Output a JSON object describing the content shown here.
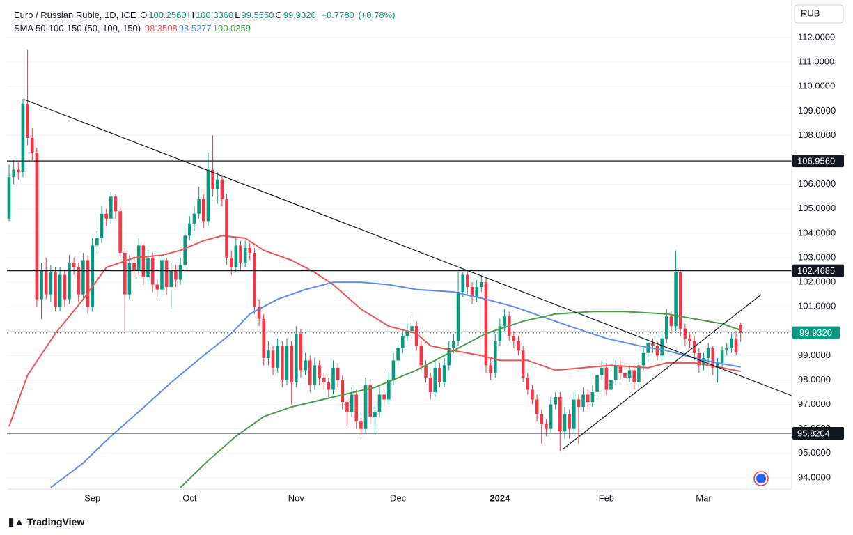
{
  "chart_data": {
    "type": "candlestick",
    "header": {
      "symbol": "Euro / Russian Ruble, 1D, ICE",
      "fields": [
        {
          "key": "O",
          "value": 100.256,
          "label": "100.2560"
        },
        {
          "key": "H",
          "value": 100.336,
          "label": "100.3360"
        },
        {
          "key": "L",
          "value": 99.555,
          "label": "99.5550"
        },
        {
          "key": "C",
          "value": 99.932,
          "label": "99.9320"
        }
      ],
      "change": {
        "value": 0.778,
        "label": "+0.7780"
      },
      "change_percent": {
        "value": 0.78,
        "label": "(+0.78%)"
      },
      "indicator": "SMA 50-100-150 (50, 100, 150)"
    },
    "currency": "RUB",
    "brand": "TradingView",
    "up_color": "#089981",
    "down_color": "#f23645",
    "grid": true,
    "ylim": [
      93.54,
      113.54
    ],
    "yticks": [
      {
        "value": 94,
        "label": "94.0000"
      },
      {
        "value": 95,
        "label": "95.0000"
      },
      {
        "value": 96,
        "label": "96.0000"
      },
      {
        "value": 97,
        "label": "97.0000"
      },
      {
        "value": 98,
        "label": "98.0000"
      },
      {
        "value": 99,
        "label": "99.0000"
      },
      {
        "value": 100,
        "label": "100.0000"
      },
      {
        "value": 101,
        "label": "101.0000"
      },
      {
        "value": 102,
        "label": "102.0000"
      },
      {
        "value": 103,
        "label": "103.0000"
      },
      {
        "value": 104,
        "label": "104.0000"
      },
      {
        "value": 105,
        "label": "105.0000"
      },
      {
        "value": 106,
        "label": "106.0000"
      },
      {
        "value": 107,
        "label": "107.0000"
      },
      {
        "value": 108,
        "label": "108.0000"
      },
      {
        "value": 109,
        "label": "109.0000"
      },
      {
        "value": 110,
        "label": "110.0000"
      },
      {
        "value": 111,
        "label": "111.0000"
      },
      {
        "value": 112,
        "label": "112.0000"
      }
    ],
    "levels": [
      {
        "value": 106.956,
        "label": "106.9560"
      },
      {
        "value": 102.4685,
        "label": "102.4685"
      },
      {
        "value": 95.8204,
        "label": "95.8204"
      }
    ],
    "last_price": {
      "value": 99.932,
      "label": "99.9320",
      "color": "#089981"
    },
    "categories": [
      null,
      null,
      null,
      null,
      null,
      null,
      null,
      null,
      null,
      null,
      null,
      null,
      null,
      null,
      null,
      null,
      null,
      null,
      "Sep",
      null,
      null,
      null,
      null,
      null,
      null,
      null,
      null,
      null,
      null,
      null,
      null,
      null,
      null,
      null,
      null,
      null,
      null,
      null,
      null,
      "Oct",
      null,
      null,
      null,
      null,
      null,
      null,
      null,
      null,
      null,
      null,
      null,
      null,
      null,
      null,
      null,
      null,
      null,
      null,
      null,
      null,
      null,
      null,
      "Nov",
      null,
      null,
      null,
      null,
      null,
      null,
      null,
      null,
      null,
      null,
      null,
      null,
      null,
      null,
      null,
      null,
      null,
      null,
      null,
      null,
      null,
      "Dec",
      null,
      null,
      null,
      null,
      null,
      null,
      null,
      null,
      null,
      null,
      null,
      null,
      null,
      null,
      null,
      null,
      null,
      null,
      null,
      null,
      null,
      "2024",
      null,
      null,
      null,
      null,
      null,
      null,
      null,
      null,
      null,
      null,
      null,
      null,
      null,
      null,
      null,
      null,
      null,
      null,
      null,
      null,
      null,
      null,
      "Feb",
      null,
      null,
      null,
      null,
      null,
      null,
      null,
      null,
      null,
      null,
      null,
      null,
      null,
      null,
      null,
      null,
      null,
      null,
      null,
      null,
      "Mar",
      null,
      null,
      null,
      null,
      null,
      null,
      null,
      null
    ],
    "ohlc": [
      [
        104.6,
        106.8,
        104.5,
        106.3
      ],
      [
        106.3,
        107.0,
        106.0,
        106.6
      ],
      [
        106.6,
        106.9,
        106.2,
        106.5
      ],
      [
        106.5,
        109.5,
        106.3,
        109.3
      ],
      [
        109.3,
        111.5,
        107.6,
        107.9
      ],
      [
        107.9,
        108.3,
        107.0,
        107.3
      ],
      [
        107.3,
        107.5,
        101.0,
        101.3
      ],
      [
        101.3,
        102.8,
        100.5,
        102.5
      ],
      [
        102.5,
        103.0,
        101.3,
        101.5
      ],
      [
        101.5,
        102.7,
        101.2,
        102.4
      ],
      [
        102.4,
        102.6,
        100.8,
        101.0
      ],
      [
        101.0,
        102.6,
        100.8,
        102.3
      ],
      [
        102.3,
        102.5,
        101.0,
        101.3
      ],
      [
        101.3,
        103.1,
        101.1,
        102.8
      ],
      [
        102.8,
        103.0,
        102.3,
        102.6
      ],
      [
        102.6,
        102.8,
        101.2,
        101.5
      ],
      [
        101.5,
        103.2,
        101.3,
        102.9
      ],
      [
        102.9,
        103.1,
        100.7,
        101.0
      ],
      [
        101.0,
        103.8,
        100.8,
        103.5
      ],
      [
        103.5,
        104.1,
        103.2,
        103.8
      ],
      [
        103.8,
        105.1,
        103.6,
        104.8
      ],
      [
        104.8,
        105.0,
        104.3,
        104.6
      ],
      [
        104.6,
        105.7,
        104.4,
        105.5
      ],
      [
        105.5,
        105.6,
        104.6,
        104.9
      ],
      [
        104.9,
        105.1,
        103.0,
        103.2
      ],
      [
        103.2,
        103.4,
        100.0,
        101.5
      ],
      [
        101.5,
        103.1,
        101.3,
        102.8
      ],
      [
        102.8,
        103.0,
        102.2,
        102.5
      ],
      [
        102.5,
        103.8,
        102.3,
        103.5
      ],
      [
        103.5,
        103.6,
        101.9,
        102.2
      ],
      [
        102.2,
        103.3,
        102.0,
        103.0
      ],
      [
        103.0,
        103.2,
        101.6,
        101.9
      ],
      [
        101.9,
        102.1,
        101.4,
        101.7
      ],
      [
        101.7,
        103.2,
        101.5,
        102.9
      ],
      [
        102.9,
        103.0,
        101.5,
        101.8
      ],
      [
        101.8,
        102.8,
        100.9,
        102.5
      ],
      [
        102.5,
        102.7,
        101.8,
        102.1
      ],
      [
        102.1,
        103.0,
        101.9,
        102.7
      ],
      [
        102.7,
        104.2,
        102.5,
        103.9
      ],
      [
        103.9,
        104.7,
        103.7,
        104.4
      ],
      [
        104.4,
        105.1,
        104.1,
        104.8
      ],
      [
        104.8,
        105.9,
        104.6,
        105.4
      ],
      [
        105.4,
        105.6,
        104.2,
        104.5
      ],
      [
        104.5,
        107.3,
        104.3,
        106.6
      ],
      [
        106.6,
        108.0,
        105.5,
        105.8
      ],
      [
        105.8,
        106.5,
        105.2,
        106.2
      ],
      [
        106.2,
        106.4,
        105.1,
        105.4
      ],
      [
        105.4,
        105.6,
        102.7,
        103.0
      ],
      [
        103.0,
        103.3,
        102.3,
        102.6
      ],
      [
        102.6,
        103.8,
        102.4,
        103.5
      ],
      [
        103.5,
        103.7,
        102.5,
        102.8
      ],
      [
        102.8,
        103.7,
        102.6,
        103.4
      ],
      [
        103.4,
        103.6,
        102.9,
        103.2
      ],
      [
        103.2,
        103.4,
        100.7,
        101.0
      ],
      [
        101.0,
        101.3,
        100.2,
        100.5
      ],
      [
        100.5,
        100.7,
        98.6,
        98.9
      ],
      [
        98.9,
        99.6,
        98.6,
        99.2
      ],
      [
        99.2,
        99.4,
        98.2,
        98.5
      ],
      [
        98.5,
        99.7,
        98.3,
        99.4
      ],
      [
        99.4,
        99.6,
        97.7,
        98.0
      ],
      [
        98.0,
        99.7,
        97.8,
        99.4
      ],
      [
        99.4,
        99.6,
        97.0,
        97.9
      ],
      [
        97.9,
        100.2,
        97.7,
        99.9
      ],
      [
        99.9,
        100.1,
        98.1,
        98.4
      ],
      [
        98.4,
        99.1,
        98.2,
        98.8
      ],
      [
        98.8,
        99.0,
        97.5,
        97.8
      ],
      [
        97.8,
        98.9,
        97.6,
        98.6
      ],
      [
        98.6,
        98.8,
        97.8,
        98.1
      ],
      [
        98.1,
        98.3,
        97.6,
        97.9
      ],
      [
        97.9,
        98.1,
        97.3,
        97.6
      ],
      [
        97.6,
        98.8,
        97.4,
        98.5
      ],
      [
        98.5,
        98.7,
        97.7,
        98.0
      ],
      [
        98.0,
        98.2,
        96.8,
        97.1
      ],
      [
        97.1,
        97.3,
        96.1,
        96.7
      ],
      [
        96.7,
        97.7,
        96.5,
        97.4
      ],
      [
        97.4,
        97.6,
        96.0,
        96.3
      ],
      [
        96.3,
        96.5,
        95.7,
        96.0
      ],
      [
        96.0,
        98.1,
        95.8,
        97.8
      ],
      [
        97.8,
        98.0,
        96.2,
        96.5
      ],
      [
        96.5,
        97.0,
        95.8,
        96.7
      ],
      [
        96.7,
        97.7,
        96.5,
        97.4
      ],
      [
        97.4,
        97.6,
        96.9,
        97.2
      ],
      [
        97.2,
        98.3,
        97.0,
        98.0
      ],
      [
        98.0,
        99.1,
        97.8,
        98.8
      ],
      [
        98.8,
        99.6,
        98.6,
        99.3
      ],
      [
        99.3,
        100.1,
        99.1,
        99.8
      ],
      [
        99.8,
        100.3,
        99.6,
        100.0
      ],
      [
        100.0,
        100.7,
        99.8,
        100.2
      ],
      [
        100.2,
        100.4,
        99.2,
        99.4
      ],
      [
        99.4,
        99.6,
        98.4,
        98.6
      ],
      [
        98.6,
        98.8,
        97.9,
        98.1
      ],
      [
        98.1,
        98.3,
        97.2,
        97.5
      ],
      [
        97.5,
        98.8,
        97.3,
        98.5
      ],
      [
        98.5,
        98.7,
        97.7,
        97.9
      ],
      [
        97.9,
        98.9,
        97.7,
        98.6
      ],
      [
        98.6,
        99.6,
        98.4,
        99.3
      ],
      [
        99.3,
        99.9,
        99.1,
        99.6
      ],
      [
        99.6,
        102.4,
        99.4,
        101.6
      ],
      [
        101.6,
        102.4,
        101.4,
        102.3
      ],
      [
        102.3,
        102.5,
        101.5,
        101.8
      ],
      [
        101.8,
        102.0,
        101.1,
        101.4
      ],
      [
        101.4,
        102.1,
        101.2,
        101.8
      ],
      [
        101.8,
        102.3,
        101.6,
        102.0
      ],
      [
        102.0,
        102.2,
        98.3,
        98.6
      ],
      [
        98.6,
        98.9,
        98.0,
        98.3
      ],
      [
        98.3,
        99.9,
        98.1,
        99.6
      ],
      [
        99.6,
        100.5,
        99.4,
        100.2
      ],
      [
        100.2,
        100.9,
        100.0,
        100.6
      ],
      [
        100.6,
        100.8,
        99.6,
        99.8
      ],
      [
        99.8,
        100.0,
        99.3,
        99.6
      ],
      [
        99.6,
        99.8,
        99.0,
        99.2
      ],
      [
        99.2,
        99.4,
        97.9,
        98.1
      ],
      [
        98.1,
        98.3,
        97.4,
        97.6
      ],
      [
        97.6,
        97.8,
        97.0,
        97.2
      ],
      [
        97.2,
        97.4,
        96.3,
        96.6
      ],
      [
        96.6,
        96.8,
        95.4,
        96.2
      ],
      [
        96.2,
        96.4,
        95.7,
        96.0
      ],
      [
        96.0,
        97.3,
        95.8,
        97.0
      ],
      [
        97.0,
        97.5,
        96.8,
        97.3
      ],
      [
        97.3,
        97.5,
        95.1,
        95.9
      ],
      [
        95.9,
        96.9,
        95.6,
        96.6
      ],
      [
        96.6,
        96.8,
        95.6,
        96.0
      ],
      [
        96.0,
        97.5,
        95.8,
        97.2
      ],
      [
        97.2,
        97.4,
        95.4,
        96.9
      ],
      [
        96.9,
        97.7,
        96.7,
        97.4
      ],
      [
        97.4,
        97.6,
        96.8,
        97.1
      ],
      [
        97.1,
        97.8,
        96.9,
        97.5
      ],
      [
        97.5,
        98.5,
        97.3,
        98.2
      ],
      [
        98.2,
        98.8,
        98.0,
        98.5
      ],
      [
        98.5,
        98.7,
        97.4,
        97.6
      ],
      [
        97.6,
        98.3,
        97.4,
        98.0
      ],
      [
        98.0,
        98.8,
        97.8,
        98.6
      ],
      [
        98.6,
        98.8,
        98.0,
        98.3
      ],
      [
        98.3,
        98.5,
        97.8,
        98.1
      ],
      [
        98.1,
        98.6,
        97.9,
        98.4
      ],
      [
        98.4,
        98.6,
        97.6,
        97.9
      ],
      [
        97.9,
        98.8,
        97.7,
        98.6
      ],
      [
        98.6,
        99.3,
        98.4,
        99.1
      ],
      [
        99.1,
        99.8,
        98.9,
        99.5
      ],
      [
        99.5,
        99.7,
        99.1,
        99.4
      ],
      [
        99.4,
        99.6,
        98.8,
        99.0
      ],
      [
        99.0,
        100.0,
        98.8,
        99.7
      ],
      [
        99.7,
        100.9,
        99.5,
        100.6
      ],
      [
        100.6,
        100.8,
        99.9,
        100.2
      ],
      [
        100.2,
        103.3,
        100.0,
        102.4
      ],
      [
        102.4,
        102.5,
        99.8,
        100.1
      ],
      [
        100.1,
        100.3,
        99.4,
        99.7
      ],
      [
        99.7,
        99.9,
        99.3,
        99.6
      ],
      [
        99.6,
        99.8,
        98.8,
        99.1
      ],
      [
        99.1,
        99.3,
        98.3,
        98.6
      ],
      [
        98.6,
        99.1,
        98.4,
        98.9
      ],
      [
        98.9,
        99.5,
        98.7,
        99.3
      ],
      [
        99.3,
        99.4,
        98.2,
        98.5
      ],
      [
        98.5,
        98.9,
        97.9,
        98.7
      ],
      [
        98.7,
        99.4,
        98.5,
        99.2
      ],
      [
        99.2,
        99.5,
        99.0,
        99.3
      ],
      [
        99.3,
        99.9,
        99.1,
        99.7
      ],
      [
        99.7,
        100.0,
        99.0,
        99.154
      ],
      [
        100.256,
        100.336,
        99.555,
        99.932
      ]
    ],
    "sma": [
      {
        "color": "#ef5350",
        "x": [
          0,
          4,
          10,
          16,
          21,
          27,
          33,
          37,
          42,
          46,
          51,
          55,
          61,
          66,
          70,
          76,
          82,
          88,
          91,
          96,
          102,
          106,
          112,
          118,
          124,
          130,
          138,
          142,
          148,
          154,
          158
        ],
        "values": [
          96.1,
          98.2,
          99.9,
          101.3,
          102.6,
          103.0,
          103.1,
          103.3,
          103.7,
          103.9,
          103.8,
          103.3,
          102.9,
          102.4,
          101.9,
          100.9,
          100.2,
          99.9,
          99.4,
          99.2,
          99.0,
          98.8,
          98.8,
          98.4,
          98.5,
          98.6,
          98.5,
          98.7,
          98.7,
          98.5,
          98.3508
        ]
      },
      {
        "color": "#5b8def",
        "x": [
          9,
          16,
          22,
          28,
          35,
          42,
          48,
          52,
          58,
          64,
          70,
          76,
          82,
          88,
          96,
          103,
          109,
          115,
          121,
          129,
          136,
          142,
          148,
          153,
          158
        ],
        "values": [
          93.6,
          94.6,
          95.7,
          96.7,
          97.9,
          99.0,
          99.9,
          100.7,
          101.3,
          101.7,
          102.0,
          102.0,
          101.9,
          101.7,
          101.6,
          101.3,
          101.0,
          100.6,
          100.2,
          99.7,
          99.4,
          99.2,
          98.9,
          98.7,
          98.5277
        ]
      },
      {
        "color": "#43a047",
        "x": [
          37,
          43,
          49,
          55,
          61,
          70,
          79,
          88,
          96,
          103,
          111,
          118,
          126,
          133,
          142,
          148,
          154,
          158
        ],
        "values": [
          93.6,
          94.7,
          95.7,
          96.5,
          96.9,
          97.3,
          97.7,
          98.4,
          99.2,
          99.9,
          100.4,
          100.7,
          100.8,
          100.8,
          100.7,
          100.5,
          100.3,
          100.0359
        ]
      }
    ]
  }
}
